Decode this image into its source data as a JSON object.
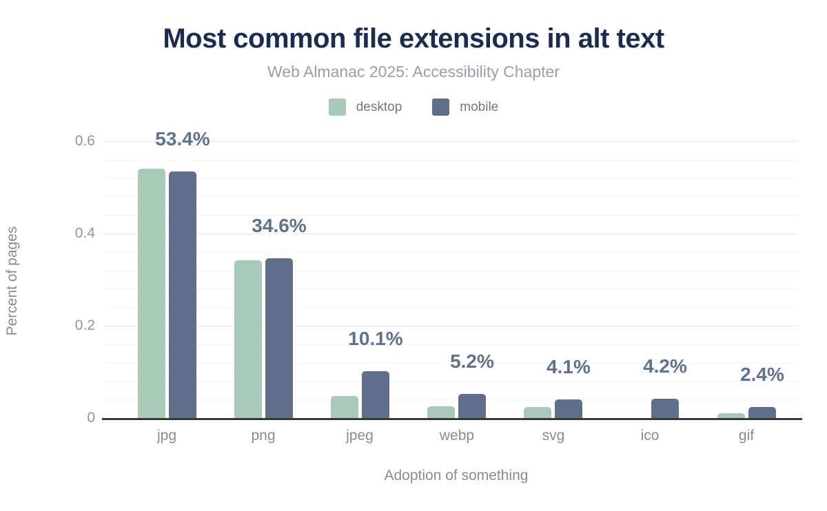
{
  "header": {
    "title": "Most common file extensions in alt text",
    "subtitle": "Web Almanac 2025: Accessibility Chapter"
  },
  "colors": {
    "title": "#1b2b52",
    "subtitle": "#9b9ea3",
    "desktop": "#a8c9b7",
    "mobile": "#606f8b",
    "bar_label": "#5d7191",
    "axis_text": "#888c92",
    "axis_line": "#3a3a3a"
  },
  "chart_data": {
    "type": "bar",
    "title": "Most common file extensions in alt text",
    "subtitle": "Web Almanac 2025: Accessibility Chapter",
    "categories": [
      "jpg",
      "png",
      "jpeg",
      "webp",
      "svg",
      "ico",
      "gif"
    ],
    "series": [
      {
        "name": "desktop",
        "color": "#a8c9b7",
        "values": [
          0.54,
          0.342,
          0.048,
          0.026,
          0.024,
          0.0,
          0.01
        ]
      },
      {
        "name": "mobile",
        "color": "#606f8b",
        "values": [
          0.534,
          0.346,
          0.101,
          0.052,
          0.041,
          0.042,
          0.024
        ]
      }
    ],
    "bar_labels": [
      "53.4%",
      "34.6%",
      "10.1%",
      "5.2%",
      "4.1%",
      "4.2%",
      "2.4%"
    ],
    "bar_labels_series": "mobile",
    "xlabel": "Adoption of something",
    "ylabel": "Percent of pages",
    "yticks": [
      {
        "value": 0,
        "label": "0"
      },
      {
        "value": 0.2,
        "label": "0.2"
      },
      {
        "value": 0.4,
        "label": "0.4"
      },
      {
        "value": 0.6,
        "label": "0.6"
      }
    ],
    "ylim": [
      0,
      0.6
    ],
    "grid": {
      "minor_step": 0.04,
      "major_step": 0.2,
      "orientation": "horizontal"
    },
    "legend_position": "top"
  }
}
